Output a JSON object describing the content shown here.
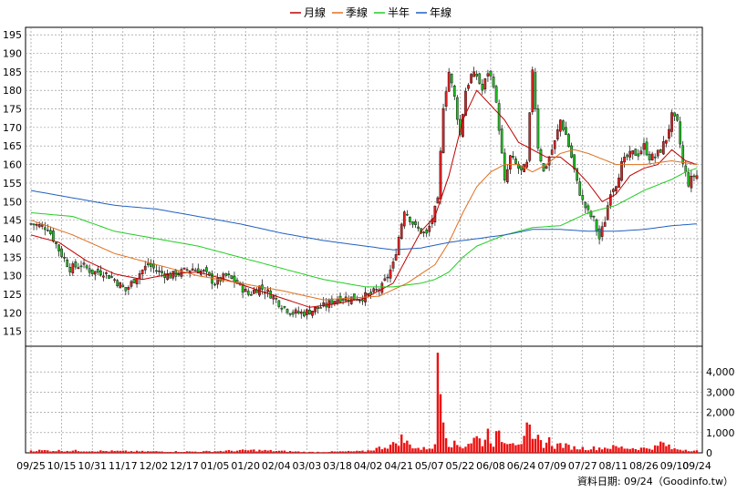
{
  "chart_data": {
    "type": "candlestick",
    "legend": [
      {
        "label": "月線",
        "color": "#c00000"
      },
      {
        "label": "季線",
        "color": "#e07020"
      },
      {
        "label": "半年",
        "color": "#22cc22"
      },
      {
        "label": "年線",
        "color": "#2060c0"
      }
    ],
    "price_axis": {
      "ylim": [
        111,
        197
      ],
      "ticks": [
        115,
        120,
        125,
        130,
        135,
        140,
        145,
        150,
        155,
        160,
        165,
        170,
        175,
        180,
        185,
        190,
        195
      ]
    },
    "volume_axis": {
      "ylim": [
        0,
        5000
      ],
      "ticks": [
        0,
        1000,
        2000,
        3000,
        4000
      ],
      "tick_labels": [
        "0",
        "1,000",
        "2,000",
        "3,000",
        "4,000"
      ]
    },
    "x_axis": {
      "n": 240,
      "tick_labels": [
        "09/25",
        "10/15",
        "10/31",
        "11/17",
        "12/02",
        "12/17",
        "01/05",
        "01/20",
        "02/04",
        "03/03",
        "03/18",
        "04/02",
        "04/21",
        "05/07",
        "05/22",
        "06/08",
        "06/24",
        "07/09",
        "07/27",
        "08/11",
        "08/26",
        "09/10",
        "09/24"
      ],
      "tick_indices": [
        0,
        11,
        22,
        33,
        44,
        55,
        66,
        77,
        88,
        99,
        110,
        121,
        132,
        143,
        154,
        165,
        176,
        187,
        198,
        209,
        220,
        231,
        239
      ]
    },
    "close_anchors": [
      [
        0,
        144
      ],
      [
        6,
        143
      ],
      [
        10,
        137
      ],
      [
        14,
        132
      ],
      [
        18,
        133
      ],
      [
        22,
        131
      ],
      [
        26,
        131
      ],
      [
        30,
        129
      ],
      [
        34,
        126
      ],
      [
        38,
        130
      ],
      [
        42,
        133
      ],
      [
        46,
        131
      ],
      [
        50,
        130
      ],
      [
        54,
        131
      ],
      [
        58,
        132
      ],
      [
        62,
        131
      ],
      [
        66,
        128
      ],
      [
        70,
        130
      ],
      [
        74,
        128
      ],
      [
        78,
        125
      ],
      [
        82,
        127
      ],
      [
        86,
        125
      ],
      [
        90,
        122
      ],
      [
        94,
        120
      ],
      [
        98,
        120
      ],
      [
        102,
        121
      ],
      [
        106,
        122
      ],
      [
        110,
        124
      ],
      [
        114,
        124
      ],
      [
        118,
        124
      ],
      [
        122,
        125
      ],
      [
        126,
        127
      ],
      [
        130,
        133
      ],
      [
        134,
        148
      ],
      [
        138,
        143
      ],
      [
        142,
        141
      ],
      [
        146,
        150
      ],
      [
        148,
        176
      ],
      [
        150,
        185
      ],
      [
        152,
        178
      ],
      [
        154,
        168
      ],
      [
        156,
        180
      ],
      [
        158,
        184
      ],
      [
        160,
        184
      ],
      [
        162,
        180
      ],
      [
        164,
        185
      ],
      [
        166,
        182
      ],
      [
        168,
        170
      ],
      [
        170,
        155
      ],
      [
        172,
        162
      ],
      [
        174,
        160
      ],
      [
        176,
        158
      ],
      [
        178,
        160
      ],
      [
        180,
        186
      ],
      [
        182,
        165
      ],
      [
        184,
        158
      ],
      [
        186,
        162
      ],
      [
        188,
        166
      ],
      [
        190,
        172
      ],
      [
        192,
        168
      ],
      [
        194,
        162
      ],
      [
        196,
        155
      ],
      [
        198,
        150
      ],
      [
        200,
        147
      ],
      [
        202,
        145
      ],
      [
        204,
        140
      ],
      [
        206,
        145
      ],
      [
        208,
        153
      ],
      [
        210,
        155
      ],
      [
        212,
        160
      ],
      [
        214,
        162
      ],
      [
        216,
        163
      ],
      [
        218,
        163
      ],
      [
        220,
        165
      ],
      [
        222,
        162
      ],
      [
        224,
        162
      ],
      [
        226,
        164
      ],
      [
        228,
        167
      ],
      [
        230,
        173
      ],
      [
        232,
        171
      ],
      [
        234,
        160
      ],
      [
        236,
        155
      ],
      [
        238,
        157
      ],
      [
        239,
        157
      ]
    ],
    "volume_anchors": [
      [
        0,
        120
      ],
      [
        20,
        100
      ],
      [
        40,
        70
      ],
      [
        60,
        60
      ],
      [
        80,
        130
      ],
      [
        100,
        40
      ],
      [
        120,
        80
      ],
      [
        130,
        400
      ],
      [
        133,
        700
      ],
      [
        136,
        380
      ],
      [
        140,
        180
      ],
      [
        145,
        320
      ],
      [
        146,
        4950
      ],
      [
        148,
        1500
      ],
      [
        150,
        500
      ],
      [
        155,
        300
      ],
      [
        160,
        750
      ],
      [
        162,
        500
      ],
      [
        164,
        1000
      ],
      [
        166,
        500
      ],
      [
        168,
        1100
      ],
      [
        170,
        450
      ],
      [
        172,
        750
      ],
      [
        174,
        550
      ],
      [
        176,
        600
      ],
      [
        178,
        1500
      ],
      [
        180,
        480
      ],
      [
        182,
        650
      ],
      [
        184,
        420
      ],
      [
        186,
        600
      ],
      [
        188,
        320
      ],
      [
        190,
        420
      ],
      [
        192,
        330
      ],
      [
        195,
        250
      ],
      [
        200,
        220
      ],
      [
        205,
        250
      ],
      [
        210,
        280
      ],
      [
        215,
        230
      ],
      [
        220,
        220
      ],
      [
        225,
        300
      ],
      [
        226,
        500
      ],
      [
        228,
        380
      ],
      [
        230,
        200
      ],
      [
        235,
        160
      ],
      [
        239,
        100
      ]
    ],
    "ma_month": [
      [
        0,
        141
      ],
      [
        10,
        139
      ],
      [
        20,
        134
      ],
      [
        30,
        130.5
      ],
      [
        40,
        129
      ],
      [
        50,
        130.5
      ],
      [
        60,
        131
      ],
      [
        70,
        129
      ],
      [
        80,
        126.5
      ],
      [
        90,
        124
      ],
      [
        100,
        121.5
      ],
      [
        110,
        122.5
      ],
      [
        120,
        124
      ],
      [
        130,
        128
      ],
      [
        140,
        142
      ],
      [
        145,
        146
      ],
      [
        150,
        157
      ],
      [
        155,
        172
      ],
      [
        160,
        180
      ],
      [
        165,
        176
      ],
      [
        170,
        172
      ],
      [
        175,
        166
      ],
      [
        180,
        164
      ],
      [
        185,
        162
      ],
      [
        190,
        162
      ],
      [
        195,
        159
      ],
      [
        200,
        155
      ],
      [
        205,
        150
      ],
      [
        210,
        152
      ],
      [
        215,
        157
      ],
      [
        220,
        159
      ],
      [
        225,
        160
      ],
      [
        230,
        164
      ],
      [
        235,
        161
      ],
      [
        239,
        160
      ]
    ],
    "ma_quarter": [
      [
        0,
        145
      ],
      [
        15,
        141
      ],
      [
        30,
        136
      ],
      [
        45,
        133
      ],
      [
        60,
        130
      ],
      [
        75,
        128
      ],
      [
        90,
        126
      ],
      [
        105,
        123.5
      ],
      [
        115,
        124
      ],
      [
        125,
        124.5
      ],
      [
        135,
        128
      ],
      [
        145,
        133
      ],
      [
        150,
        139
      ],
      [
        155,
        147
      ],
      [
        160,
        154
      ],
      [
        165,
        158
      ],
      [
        170,
        160
      ],
      [
        175,
        160
      ],
      [
        180,
        158
      ],
      [
        185,
        160
      ],
      [
        190,
        163
      ],
      [
        195,
        164
      ],
      [
        200,
        163
      ],
      [
        210,
        160
      ],
      [
        220,
        160
      ],
      [
        230,
        161
      ],
      [
        239,
        160
      ]
    ],
    "ma_half": [
      [
        0,
        147
      ],
      [
        15,
        146
      ],
      [
        30,
        142
      ],
      [
        45,
        140
      ],
      [
        60,
        138
      ],
      [
        75,
        135
      ],
      [
        90,
        132
      ],
      [
        105,
        129
      ],
      [
        120,
        127
      ],
      [
        130,
        127
      ],
      [
        140,
        128
      ],
      [
        145,
        129
      ],
      [
        150,
        131
      ],
      [
        155,
        135
      ],
      [
        160,
        138
      ],
      [
        170,
        141
      ],
      [
        180,
        143
      ],
      [
        190,
        143.5
      ],
      [
        200,
        147
      ],
      [
        210,
        149
      ],
      [
        220,
        153
      ],
      [
        230,
        156
      ],
      [
        235,
        158
      ],
      [
        239,
        159
      ]
    ],
    "ma_year": [
      [
        0,
        153
      ],
      [
        15,
        151
      ],
      [
        30,
        149
      ],
      [
        45,
        148
      ],
      [
        60,
        146
      ],
      [
        75,
        144
      ],
      [
        90,
        141.5
      ],
      [
        105,
        139.5
      ],
      [
        120,
        138
      ],
      [
        130,
        137
      ],
      [
        140,
        137.5
      ],
      [
        150,
        139
      ],
      [
        160,
        140
      ],
      [
        170,
        141
      ],
      [
        180,
        142.5
      ],
      [
        190,
        142.5
      ],
      [
        200,
        142
      ],
      [
        210,
        142
      ],
      [
        220,
        142.5
      ],
      [
        230,
        143.5
      ],
      [
        239,
        144
      ]
    ]
  },
  "source_label": "資料日期: 09/24（Goodinfo.tw）",
  "colors": {
    "up": "#dd2222",
    "down": "#22bb22",
    "volume": "#ee1111",
    "grid": "#888888"
  }
}
